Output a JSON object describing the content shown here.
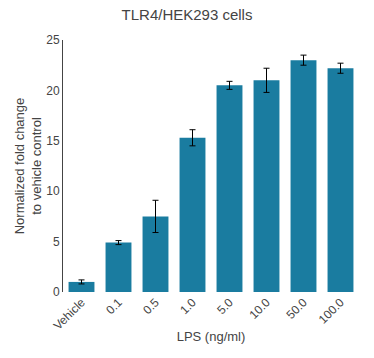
{
  "chart_data": {
    "type": "bar",
    "title": "TLR4/HEK293 cells",
    "xlabel": "LPS (ng/ml)",
    "ylabel": "Normalized fold change\nto vehicle control",
    "categories": [
      "Vehicle",
      "0.1",
      "0.5",
      "1.0",
      "5.0",
      "10.0",
      "50.0",
      "100.0"
    ],
    "values": [
      1.0,
      4.9,
      7.5,
      15.3,
      20.5,
      21.0,
      23.0,
      22.2
    ],
    "errors": [
      0.2,
      0.2,
      1.6,
      0.8,
      0.4,
      1.2,
      0.5,
      0.5
    ],
    "color": "#1a7ca0",
    "ylim": [
      0,
      25
    ],
    "yticks": [
      0,
      5,
      10,
      15,
      20,
      25
    ],
    "grid": false
  }
}
